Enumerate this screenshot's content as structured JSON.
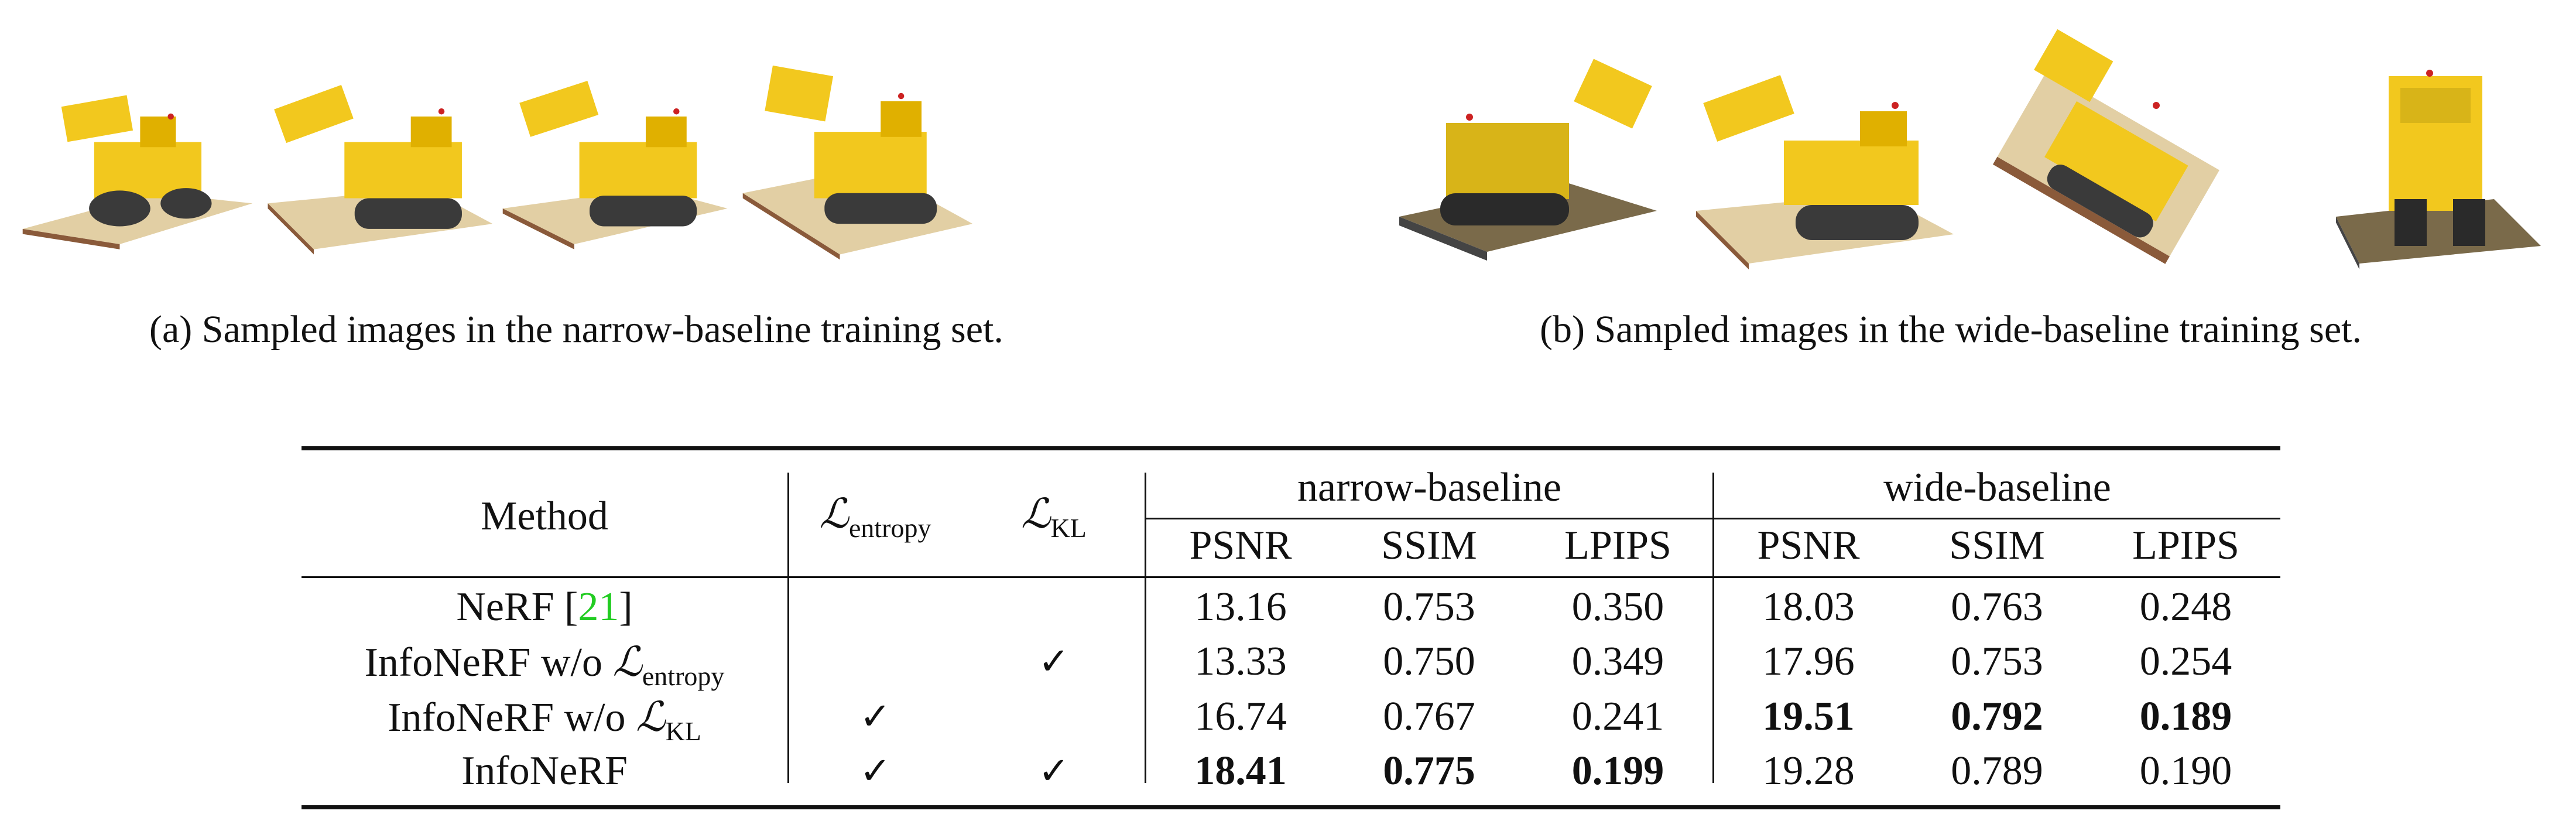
{
  "captions": {
    "narrow": "(a) Sampled images in the narrow-baseline training set.",
    "wide": "(b) Sampled images in the wide-baseline training set."
  },
  "table": {
    "header": {
      "method": "Method",
      "entropy_symbol": "ℒ",
      "entropy_sub": "entropy",
      "kl_symbol": "ℒ",
      "kl_sub": "KL",
      "group_narrow": "narrow-baseline",
      "group_wide": "wide-baseline",
      "metrics": [
        "PSNR",
        "SSIM",
        "LPIPS",
        "PSNR",
        "SSIM",
        "LPIPS"
      ]
    },
    "rows": [
      {
        "method_prefix": "NeRF [",
        "cite": "21",
        "method_suffix": "]",
        "method_sub": "",
        "entropy": "",
        "kl": "",
        "values": [
          "13.16",
          "0.753",
          "0.350",
          "18.03",
          "0.763",
          "0.248"
        ]
      },
      {
        "method_prefix": "InfoNeRF w/o ",
        "method_symbol": "ℒ",
        "method_sub": "entropy",
        "entropy": "",
        "kl": "✓",
        "values": [
          "13.33",
          "0.750",
          "0.349",
          "17.96",
          "0.753",
          "0.254"
        ]
      },
      {
        "method_prefix": "InfoNeRF w/o ",
        "method_symbol": "ℒ",
        "method_sub": "KL",
        "entropy": "✓",
        "kl": "",
        "values": [
          "16.74",
          "0.767",
          "0.241",
          "19.51",
          "0.792",
          "0.189"
        ]
      },
      {
        "method_prefix": "InfoNeRF",
        "method_sub": "",
        "entropy": "✓",
        "kl": "✓",
        "values": [
          "18.41",
          "0.775",
          "0.199",
          "19.28",
          "0.789",
          "0.190"
        ]
      }
    ]
  },
  "colors": {
    "toy_yellow": "#f2c81e",
    "toy_dark": "#3a3a3a",
    "base_plate": "#e2cfa4",
    "dirt": "#8a5a3a",
    "cite_green": "#22cc22"
  }
}
